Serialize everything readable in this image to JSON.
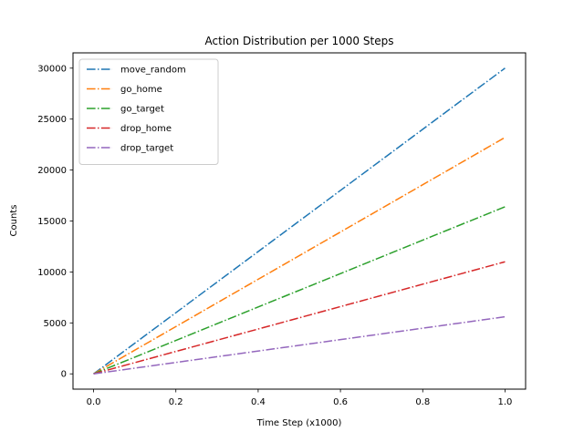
{
  "chart_data": {
    "type": "line",
    "title": "Action Distribution per 1000 Steps",
    "xlabel": "Time Step (x1000)",
    "ylabel": "Counts",
    "xlim": [
      -0.05,
      1.05
    ],
    "ylim": [
      -1500,
      31500
    ],
    "xticks": [
      0.0,
      0.2,
      0.4,
      0.6,
      0.8,
      1.0
    ],
    "xtick_labels": [
      "0.0",
      "0.2",
      "0.4",
      "0.6",
      "0.8",
      "1.0"
    ],
    "yticks": [
      0,
      5000,
      10000,
      15000,
      20000,
      25000,
      30000
    ],
    "ytick_labels": [
      "0",
      "5000",
      "10000",
      "15000",
      "20000",
      "25000",
      "30000"
    ],
    "grid": false,
    "legend_position": "upper-left",
    "line_style": "dash-dot",
    "series": [
      {
        "name": "move_random",
        "color": "#1f77b4",
        "x": [
          0.0,
          1.0
        ],
        "y": [
          0,
          30000
        ]
      },
      {
        "name": "go_home",
        "color": "#ff7f0e",
        "x": [
          0.0,
          1.0
        ],
        "y": [
          0,
          23200
        ]
      },
      {
        "name": "go_target",
        "color": "#2ca02c",
        "x": [
          0.0,
          1.0
        ],
        "y": [
          0,
          16400
        ]
      },
      {
        "name": "drop_home",
        "color": "#d62728",
        "x": [
          0.0,
          1.0
        ],
        "y": [
          0,
          11000
        ]
      },
      {
        "name": "drop_target",
        "color": "#9467bd",
        "x": [
          0.0,
          1.0
        ],
        "y": [
          0,
          5600
        ]
      }
    ]
  }
}
